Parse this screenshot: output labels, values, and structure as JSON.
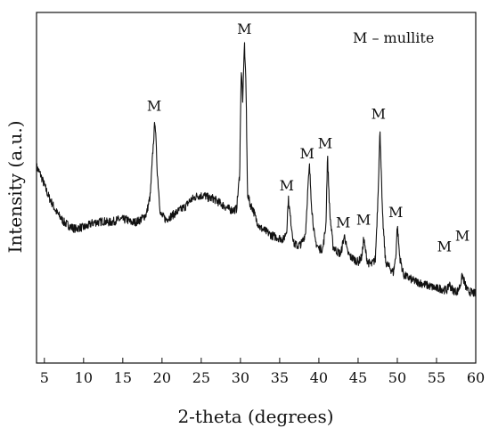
{
  "chart_data": {
    "type": "line",
    "title": "",
    "xlabel": "2-theta (degrees)",
    "ylabel": "Intensity (a.u.)",
    "xlim": [
      4,
      60
    ],
    "ylim": [
      0,
      100
    ],
    "xticks": [
      5,
      10,
      15,
      20,
      25,
      30,
      35,
      40,
      45,
      50,
      55,
      60
    ],
    "yticks_shown": false,
    "grid": false,
    "legend": {
      "text": "M – mullite",
      "placement": "top-right"
    },
    "series": [
      {
        "values_x": [
          4,
          4.5,
          5,
          5.5,
          6,
          6.5,
          7,
          7.5,
          8,
          8.5,
          9,
          9.5,
          10,
          10.5,
          11,
          11.5,
          12,
          12.5,
          13,
          13.5,
          14,
          14.5,
          15,
          15.5,
          16,
          16.5,
          17,
          17.5,
          18,
          18.5,
          18.8,
          19.1,
          19.4,
          19.8,
          20.5,
          21,
          21.5,
          22,
          22.5,
          23,
          23.5,
          24,
          24.5,
          25,
          25.5,
          26,
          26.5,
          27,
          27.5,
          28,
          28.5,
          29,
          29.5,
          29.9,
          30.1,
          30.3,
          30.5,
          30.7,
          30.9,
          31.2,
          31.6,
          32,
          32.5,
          33,
          33.5,
          34,
          34.5,
          35,
          35.5,
          35.9,
          36.1,
          36.4,
          36.8,
          37.3,
          37.8,
          38.3,
          38.6,
          38.8,
          39.1,
          39.5,
          40,
          40.5,
          40.9,
          41.1,
          41.4,
          41.8,
          42.3,
          42.8,
          43.1,
          43.3,
          43.6,
          44,
          44.5,
          45,
          45.5,
          45.7,
          45.9,
          46.2,
          46.7,
          47.2,
          47.5,
          47.8,
          48.1,
          48.5,
          49,
          49.5,
          49.8,
          50,
          50.3,
          50.8,
          51.5,
          52,
          52.5,
          53,
          53.5,
          54,
          54.5,
          55,
          55.5,
          56,
          56.4,
          56.6,
          56.9,
          57.3,
          57.7,
          58,
          58.3,
          58.7,
          59,
          59.5,
          60
        ],
        "values_y": [
          58,
          55,
          51,
          47,
          44,
          41,
          39,
          37,
          36,
          35,
          34.5,
          35,
          35,
          35.5,
          36.5,
          37,
          37,
          37.5,
          37,
          37,
          37.5,
          38,
          38,
          38,
          37,
          37,
          37.5,
          38.5,
          40,
          47,
          62,
          76,
          56,
          40,
          38,
          39,
          40,
          41,
          42,
          43,
          45,
          46,
          47,
          47,
          47,
          46,
          46,
          45,
          44,
          43,
          42,
          41.5,
          42,
          55,
          95,
          82,
          105,
          90,
          48,
          44,
          42,
          38,
          35,
          34,
          33,
          32,
          31.5,
          31,
          30.5,
          34,
          46,
          38,
          29,
          28,
          29,
          33,
          50,
          58,
          42,
          30,
          27,
          27,
          36,
          62,
          40,
          28,
          26,
          25,
          30,
          32,
          26,
          24,
          23,
          22,
          24,
          31,
          27,
          22,
          21,
          23,
          44,
          72,
          40,
          22,
          20,
          18,
          24,
          36,
          24,
          17,
          16,
          15,
          14.5,
          14,
          13.5,
          13,
          12.5,
          12,
          12,
          11.5,
          11.5,
          14,
          12,
          11,
          11,
          13,
          17,
          13,
          11,
          10.5,
          10
        ]
      }
    ],
    "annotations": [
      {
        "text": "M",
        "x": 19.0,
        "y": 79
      },
      {
        "text": "M",
        "x": 30.5,
        "y": 108
      },
      {
        "text": "M",
        "x": 35.9,
        "y": 49
      },
      {
        "text": "M",
        "x": 38.5,
        "y": 61
      },
      {
        "text": "M",
        "x": 40.8,
        "y": 65
      },
      {
        "text": "M",
        "x": 43.1,
        "y": 35
      },
      {
        "text": "M",
        "x": 45.7,
        "y": 36
      },
      {
        "text": "M",
        "x": 47.6,
        "y": 76
      },
      {
        "text": "M",
        "x": 49.8,
        "y": 39
      },
      {
        "text": "M",
        "x": 56.0,
        "y": 26
      },
      {
        "text": "M",
        "x": 58.3,
        "y": 30
      }
    ]
  }
}
